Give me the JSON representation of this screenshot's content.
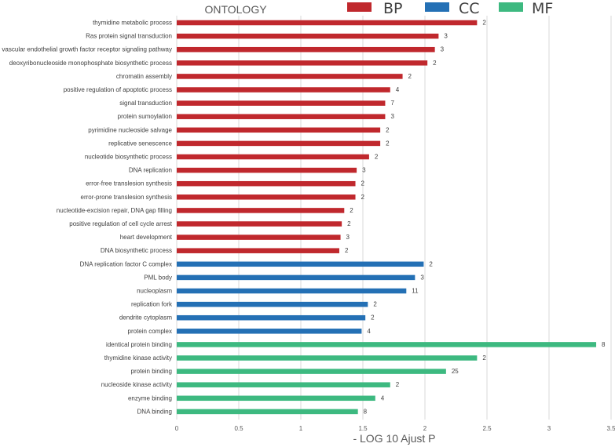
{
  "chart_data": {
    "type": "bar",
    "orientation": "horizontal",
    "title": "ONTOLOGY",
    "xlabel": "- LOG 10 Ajust P",
    "ylabel": "",
    "xlim": [
      0,
      3.5
    ],
    "xticks": [
      "0",
      "0.5",
      "1",
      "1.5",
      "2",
      "2.5",
      "3",
      "3.5"
    ],
    "grid": true,
    "legend_position": "top-right",
    "legend": [
      {
        "key": "BP",
        "label": "BP",
        "color": "#C0282D"
      },
      {
        "key": "CC",
        "label": "CC",
        "color": "#2470B5"
      },
      {
        "key": "MF",
        "label": "MF",
        "color": "#3DB980"
      }
    ],
    "categories": [
      {
        "label": "thymidine metabolic process",
        "value": 2.42,
        "count": "2",
        "group": "BP"
      },
      {
        "label": "Ras protein signal transduction",
        "value": 2.11,
        "count": "3",
        "group": "BP"
      },
      {
        "label": "vascular endothelial growth factor receptor signaling pathway",
        "value": 2.08,
        "count": "3",
        "group": "BP"
      },
      {
        "label": "deoxyribonucleoside monophosphate biosynthetic process",
        "value": 2.02,
        "count": "2",
        "group": "BP"
      },
      {
        "label": "chromatin assembly",
        "value": 1.82,
        "count": "2",
        "group": "BP"
      },
      {
        "label": "positive regulation of apoptotic process",
        "value": 1.72,
        "count": "4",
        "group": "BP"
      },
      {
        "label": "signal transduction",
        "value": 1.68,
        "count": "7",
        "group": "BP"
      },
      {
        "label": "protein sumoylation",
        "value": 1.68,
        "count": "3",
        "group": "BP"
      },
      {
        "label": "pyrimidine nucleoside salvage",
        "value": 1.64,
        "count": "2",
        "group": "BP"
      },
      {
        "label": "replicative senescence",
        "value": 1.64,
        "count": "2",
        "group": "BP"
      },
      {
        "label": "nucleotide biosynthetic process",
        "value": 1.55,
        "count": "2",
        "group": "BP"
      },
      {
        "label": "DNA replication",
        "value": 1.45,
        "count": "3",
        "group": "BP"
      },
      {
        "label": "error-free translesion synthesis",
        "value": 1.44,
        "count": "2",
        "group": "BP"
      },
      {
        "label": "error-prone translesion synthesis",
        "value": 1.44,
        "count": "2",
        "group": "BP"
      },
      {
        "label": "nucleotide-excision repair, DNA gap filling",
        "value": 1.35,
        "count": "2",
        "group": "BP"
      },
      {
        "label": "positive regulation of cell cycle arrest",
        "value": 1.33,
        "count": "2",
        "group": "BP"
      },
      {
        "label": "heart development",
        "value": 1.32,
        "count": "3",
        "group": "BP"
      },
      {
        "label": "DNA biosynthetic process",
        "value": 1.31,
        "count": "2",
        "group": "BP"
      },
      {
        "label": "DNA replication factor C complex",
        "value": 1.99,
        "count": "2",
        "group": "CC"
      },
      {
        "label": "PML body",
        "value": 1.92,
        "count": "3",
        "group": "CC"
      },
      {
        "label": "nucleoplasm",
        "value": 1.85,
        "count": "11",
        "group": "CC"
      },
      {
        "label": "replication fork",
        "value": 1.54,
        "count": "2",
        "group": "CC"
      },
      {
        "label": "dendrite cytoplasm",
        "value": 1.52,
        "count": "2",
        "group": "CC"
      },
      {
        "label": "protein complex",
        "value": 1.49,
        "count": "4",
        "group": "CC"
      },
      {
        "label": "identical protein binding",
        "value": 3.38,
        "count": "8",
        "group": "MF"
      },
      {
        "label": "thymidine kinase activity",
        "value": 2.42,
        "count": "2",
        "group": "MF"
      },
      {
        "label": "protein binding",
        "value": 2.17,
        "count": "25",
        "group": "MF"
      },
      {
        "label": "nucleoside kinase activity",
        "value": 1.72,
        "count": "2",
        "group": "MF"
      },
      {
        "label": "enzyme binding",
        "value": 1.6,
        "count": "4",
        "group": "MF"
      },
      {
        "label": "DNA binding",
        "value": 1.46,
        "count": "8",
        "group": "MF"
      }
    ]
  }
}
